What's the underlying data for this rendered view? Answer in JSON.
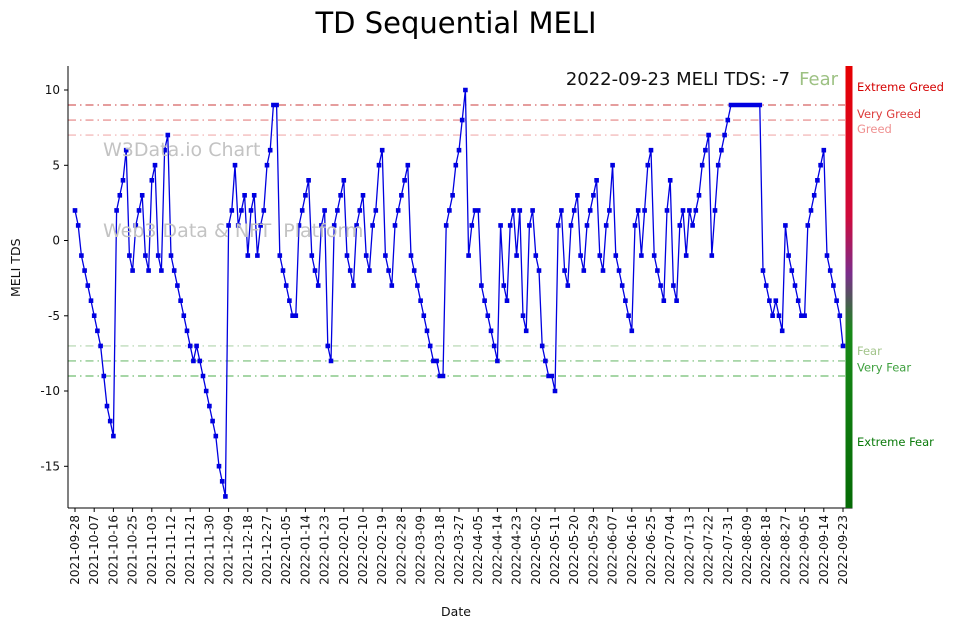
{
  "title": "TD Sequential MELI",
  "watermark": {
    "line1": "W3Data.io Chart",
    "line2": "Web3 Data & NFT  Platform"
  },
  "annotation": {
    "text": "2022-09-23 MELI TDS: -7",
    "classification": "Fear",
    "classification_color": "#9dc183"
  },
  "chart_data": {
    "type": "line",
    "title": "TD Sequential MELI",
    "xlabel": "Date",
    "ylabel": "MELI TDS",
    "line_color": "#0000e0",
    "marker": "square",
    "ylim": [
      -18.4,
      11.4
    ],
    "yticks": [
      10,
      5,
      0,
      -5,
      -10,
      -15
    ],
    "grid": false,
    "legend": "none",
    "points_per_tick": 6,
    "x_tick_labels": [
      "2021-09-28",
      "2021-10-07",
      "2021-10-16",
      "2021-10-25",
      "2021-11-03",
      "2021-11-12",
      "2021-11-21",
      "2021-11-30",
      "2021-12-09",
      "2021-12-18",
      "2021-12-27",
      "2022-01-05",
      "2022-01-14",
      "2022-01-23",
      "2022-02-01",
      "2022-02-10",
      "2022-02-19",
      "2022-02-28",
      "2022-03-09",
      "2022-03-18",
      "2022-03-27",
      "2022-04-05",
      "2022-04-14",
      "2022-04-23",
      "2022-05-02",
      "2022-05-11",
      "2022-05-20",
      "2022-05-29",
      "2022-06-07",
      "2022-06-16",
      "2022-06-25",
      "2022-07-04",
      "2022-07-13",
      "2022-07-22",
      "2022-07-31",
      "2022-08-09",
      "2022-08-18",
      "2022-08-27",
      "2022-09-05",
      "2022-09-14",
      "2022-09-23"
    ],
    "values": [
      2,
      1,
      -1,
      -2,
      -3,
      -4,
      -5,
      -6,
      -7,
      -9,
      -11,
      -12,
      -13,
      2,
      3,
      4,
      6,
      -1,
      -2,
      1,
      2,
      3,
      -1,
      -2,
      4,
      5,
      -1,
      -2,
      6,
      7,
      -1,
      -2,
      -3,
      -4,
      -5,
      -6,
      -7,
      -8,
      -7,
      -8,
      -9,
      -10,
      -11,
      -12,
      -13,
      -15,
      -16,
      -17,
      1,
      2,
      5,
      1,
      2,
      3,
      -1,
      2,
      3,
      -1,
      1,
      2,
      5,
      6,
      9,
      9,
      -1,
      -2,
      -3,
      -4,
      -5,
      -5,
      1,
      2,
      3,
      4,
      -1,
      -2,
      -3,
      1,
      2,
      -7,
      -8,
      1,
      2,
      3,
      4,
      -1,
      -2,
      -3,
      1,
      2,
      3,
      -1,
      -2,
      1,
      2,
      5,
      6,
      -1,
      -2,
      -3,
      1,
      2,
      3,
      4,
      5,
      -1,
      -2,
      -3,
      -4,
      -5,
      -6,
      -7,
      -8,
      -8,
      -9,
      -9,
      1,
      2,
      3,
      5,
      6,
      8,
      10,
      -1,
      1,
      2,
      2,
      -3,
      -4,
      -5,
      -6,
      -7,
      -8,
      1,
      -3,
      -4,
      1,
      2,
      -1,
      2,
      -5,
      -6,
      1,
      2,
      -1,
      -2,
      -7,
      -8,
      -9,
      -9,
      -10,
      1,
      2,
      -2,
      -3,
      1,
      2,
      3,
      -1,
      -2,
      1,
      2,
      3,
      4,
      -1,
      -2,
      1,
      2,
      5,
      -1,
      -2,
      -3,
      -4,
      -5,
      -6,
      1,
      2,
      -1,
      2,
      5,
      6,
      -1,
      -2,
      -3,
      -4,
      2,
      4,
      -3,
      -4,
      1,
      2,
      -1,
      2,
      1,
      2,
      3,
      5,
      6,
      7,
      -1,
      2,
      5,
      6,
      7,
      8,
      9,
      9,
      9,
      9,
      9,
      9,
      9,
      9,
      9,
      9,
      -2,
      -3,
      -4,
      -5,
      -4,
      -5,
      -6,
      1,
      -1,
      -2,
      -3,
      -4,
      -5,
      -5,
      1,
      2,
      3,
      4,
      5,
      6,
      -1,
      -2,
      -3,
      -4,
      -5,
      -7
    ],
    "thresholds": [
      {
        "y": 9,
        "color": "#c21919",
        "opacity": 0.85
      },
      {
        "y": 8,
        "color": "#d84b4b",
        "opacity": 0.7
      },
      {
        "y": 7,
        "color": "#eb9393",
        "opacity": 0.75
      },
      {
        "y": -7,
        "color": "#a3cc9e",
        "opacity": 0.85
      },
      {
        "y": -8,
        "color": "#5cb35c",
        "opacity": 0.85
      },
      {
        "y": -9,
        "color": "#2e9e2e",
        "opacity": 0.85
      }
    ],
    "zone_labels": [
      {
        "text": "Extreme Greed",
        "y": 10.2,
        "color": "#d40000"
      },
      {
        "text": "Very Greed",
        "y": 8.4,
        "color": "#dd3c3c"
      },
      {
        "text": "Greed",
        "y": 7.4,
        "color": "#ef9090"
      },
      {
        "text": "Fear",
        "y": -7.35,
        "color": "#a2c48a"
      },
      {
        "text": "Very Fear",
        "y": -8.45,
        "color": "#3fa03f"
      },
      {
        "text": "Extreme Fear",
        "y": -13.4,
        "color": "#0a7a0a"
      }
    ],
    "gauge_gradient": [
      {
        "offset": 0,
        "color": "#e60000"
      },
      {
        "offset": 0.34,
        "color": "#cf0a3c"
      },
      {
        "offset": 0.47,
        "color": "#7b2d8b"
      },
      {
        "offset": 0.6,
        "color": "#188a18"
      },
      {
        "offset": 1,
        "color": "#056a05"
      }
    ]
  }
}
